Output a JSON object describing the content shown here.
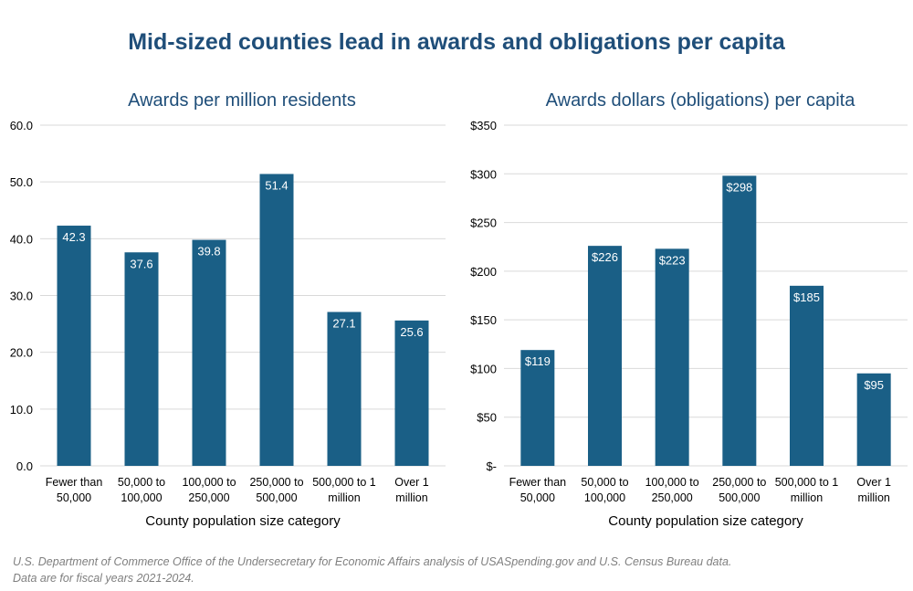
{
  "main_title": "Mid-sized counties lead in awards and obligations per capita",
  "footer": {
    "line1": "U.S. Department of Commerce Office of the Undersecretary for Economic Affairs analysis of USASpending.gov and U.S. Census Bureau data.",
    "line2": "Data are for fiscal years 2021-2024."
  },
  "colors": {
    "bar": "#1a5f86",
    "title": "#1f4e79",
    "grid": "#d9d9d9",
    "label": "#ffffff",
    "axis_text": "#000000"
  },
  "chart_data": [
    {
      "type": "bar",
      "title": "Awards per million residents",
      "xlabel": "County population size category",
      "ylabel": "",
      "categories": [
        [
          "Fewer than",
          "50,000"
        ],
        [
          "50,000 to",
          "100,000"
        ],
        [
          "100,000 to",
          "250,000"
        ],
        [
          "250,000 to",
          "500,000"
        ],
        [
          "500,000 to 1",
          "million"
        ],
        [
          "Over 1",
          "million"
        ]
      ],
      "values": [
        42.3,
        37.6,
        39.8,
        51.4,
        27.1,
        25.6
      ],
      "data_labels": [
        "42.3",
        "37.6",
        "39.8",
        "51.4",
        "27.1",
        "25.6"
      ],
      "ylim": [
        0,
        60
      ],
      "yticks": [
        0,
        10,
        20,
        30,
        40,
        50,
        60
      ],
      "ytick_labels": [
        "0.0",
        "10.0",
        "20.0",
        "30.0",
        "40.0",
        "50.0",
        "60.0"
      ],
      "grid": true
    },
    {
      "type": "bar",
      "title": "Awards dollars (obligations) per capita",
      "xlabel": "County population size category",
      "ylabel": "",
      "categories": [
        [
          "Fewer than",
          "50,000"
        ],
        [
          "50,000 to",
          "100,000"
        ],
        [
          "100,000 to",
          "250,000"
        ],
        [
          "250,000 to",
          "500,000"
        ],
        [
          "500,000 to 1",
          "million"
        ],
        [
          "Over 1",
          "million"
        ]
      ],
      "values": [
        119,
        226,
        223,
        298,
        185,
        95
      ],
      "data_labels": [
        "$119",
        "$226",
        "$223",
        "$298",
        "$185",
        "$95"
      ],
      "ylim": [
        0,
        350
      ],
      "yticks": [
        0,
        50,
        100,
        150,
        200,
        250,
        300,
        350
      ],
      "ytick_labels": [
        "$-",
        "$50",
        "$100",
        "$150",
        "$200",
        "$250",
        "$300",
        "$350"
      ],
      "grid": true
    }
  ]
}
